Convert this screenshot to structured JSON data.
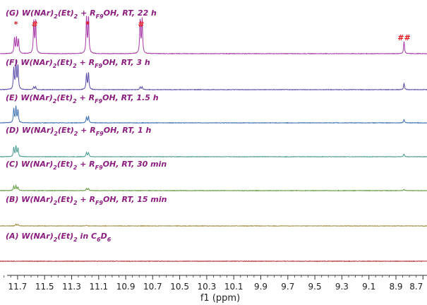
{
  "chart_data": {
    "type": "line",
    "xlabel": "f1 (ppm)",
    "xlim": [
      11.83,
      8.67
    ],
    "x_reversed": true,
    "x_ticks": [
      "11.7",
      "11.5",
      "11.3",
      "11.1",
      "10.9",
      "10.7",
      "10.5",
      "10.3",
      "10.1",
      "9.9",
      "9.7",
      "9.5",
      "9.3",
      "9.1",
      "8.9",
      "8.7"
    ],
    "series": [
      {
        "key": "G",
        "color": "#a63aa6",
        "label": {
          "pre": "(G) W(NAr)",
          "s1": "2",
          "mid": "(Et)",
          "s2": "2",
          "mid2": " + R",
          "s3": "F9",
          "post": "OH, RT, 22 h"
        },
        "peaks": [
          [
            11.723,
            22
          ],
          [
            11.708,
            22
          ],
          [
            11.693,
            20
          ],
          [
            11.58,
            45
          ],
          [
            11.566,
            45
          ],
          [
            11.19,
            50
          ],
          [
            11.175,
            52
          ],
          [
            10.793,
            48
          ],
          [
            10.778,
            48
          ],
          [
            8.84,
            17
          ]
        ]
      },
      {
        "key": "F",
        "color": "#5a4aa8",
        "label": {
          "pre": "(F) W(NAr)",
          "s1": "2",
          "mid": "(Et)",
          "s2": "2",
          "mid2": " + R",
          "s3": "F9",
          "post": "OH, RT, 3 h"
        },
        "peaks": [
          [
            11.728,
            30
          ],
          [
            11.712,
            38
          ],
          [
            11.697,
            34
          ],
          [
            11.58,
            4
          ],
          [
            11.566,
            4
          ],
          [
            11.19,
            22
          ],
          [
            11.175,
            24
          ],
          [
            10.793,
            4
          ],
          [
            10.778,
            4
          ],
          [
            8.84,
            9
          ]
        ]
      },
      {
        "key": "E",
        "color": "#3d6fb0",
        "label": {
          "pre": "(E) W(NAr)",
          "s1": "2",
          "mid": "(Et)",
          "s2": "2",
          "mid2": " + R",
          "s3": "F9",
          "post": "OH, RT, 1.5 h"
        },
        "peaks": [
          [
            11.728,
            20
          ],
          [
            11.712,
            22
          ],
          [
            11.697,
            18
          ],
          [
            11.19,
            8
          ],
          [
            11.175,
            9
          ],
          [
            8.84,
            5
          ]
        ]
      },
      {
        "key": "D",
        "color": "#4a9a92",
        "label": {
          "pre": "(D) W(NAr)",
          "s1": "2",
          "mid": "(Et)",
          "s2": "2",
          "mid2": " + R",
          "s3": "F9",
          "post": "OH, RT, 1 h"
        },
        "peaks": [
          [
            11.728,
            13
          ],
          [
            11.712,
            15
          ],
          [
            11.697,
            12
          ],
          [
            11.19,
            6
          ],
          [
            11.175,
            6
          ],
          [
            8.84,
            4
          ]
        ]
      },
      {
        "key": "C",
        "color": "#5e9a3c",
        "label": {
          "pre": "(C) W(NAr)",
          "s1": "2",
          "mid": "(Et)",
          "s2": "2",
          "mid2": " + R",
          "s3": "F9",
          "post": "OH, RT, 30 min"
        },
        "peaks": [
          [
            11.728,
            6
          ],
          [
            11.712,
            7
          ],
          [
            11.697,
            5
          ],
          [
            11.19,
            3
          ],
          [
            11.175,
            3
          ],
          [
            8.84,
            2
          ]
        ]
      },
      {
        "key": "B",
        "color": "#a58b3c",
        "label": {
          "pre": "(B) W(NAr)",
          "s1": "2",
          "mid": "(Et)",
          "s2": "2",
          "mid2": " + R",
          "s3": "F9",
          "post": "OH, RT, 15 min"
        },
        "peaks": [
          [
            11.712,
            2.5
          ],
          [
            11.697,
            2
          ],
          [
            11.19,
            1.2
          ]
        ]
      },
      {
        "key": "A",
        "color": "#b03030",
        "label": {
          "pre": "(A) W(NAr)",
          "s1": "2",
          "mid": "(Et)",
          "s2": "2",
          "mid2": " in C",
          "s3": "6",
          "mid3": "D",
          "s4": "6",
          "post": ""
        },
        "peaks": []
      }
    ],
    "annotations": [
      {
        "text": "*",
        "x": 11.712,
        "color": "#e8141a"
      },
      {
        "text": "#",
        "x": 11.573,
        "color": "#e8141a"
      },
      {
        "text": "*",
        "x": 11.182,
        "color": "#e8141a"
      },
      {
        "text": "#",
        "x": 10.786,
        "color": "#e8141a"
      },
      {
        "text": "##",
        "x": 8.84,
        "color": "#e8141a"
      }
    ]
  }
}
